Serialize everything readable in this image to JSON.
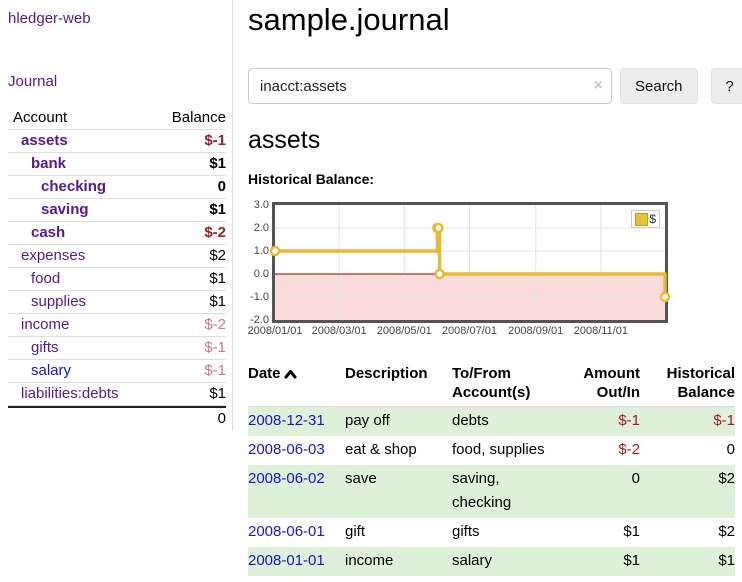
{
  "sidebar": {
    "brand": "hledger-web",
    "journal_link": "Journal",
    "accounts": {
      "header_account": "Account",
      "header_balance": "Balance",
      "rows": [
        {
          "name": "assets",
          "balance": "$-1"
        },
        {
          "name": "bank",
          "balance": "$1"
        },
        {
          "name": "checking",
          "balance": "0"
        },
        {
          "name": "saving",
          "balance": "$1"
        },
        {
          "name": "cash",
          "balance": "$-2"
        },
        {
          "name": "expenses",
          "balance": "$2"
        },
        {
          "name": "food",
          "balance": "$1"
        },
        {
          "name": "supplies",
          "balance": "$1"
        },
        {
          "name": "income",
          "balance": "$-2"
        },
        {
          "name": "gifts",
          "balance": "$-1"
        },
        {
          "name": "salary",
          "balance": "$-1"
        },
        {
          "name": "liabilities:debts",
          "balance": "$1"
        }
      ],
      "total": "0"
    }
  },
  "main": {
    "title": "sample.journal",
    "search": {
      "value": "inacct:assets",
      "clear": "×",
      "button_label": "Search",
      "help_label": "?"
    },
    "heading": "assets",
    "chart_title": "Historical Balance:"
  },
  "chart_data": {
    "type": "line",
    "title": "Historical Balance",
    "step": true,
    "series": [
      {
        "name": "$",
        "color": "#e8ba33",
        "points": [
          {
            "x": "2008-01-01",
            "y": 1
          },
          {
            "x": "2008-06-01",
            "y": 2
          },
          {
            "x": "2008-06-02",
            "y": 2
          },
          {
            "x": "2008-06-03",
            "y": 0
          },
          {
            "x": "2008-12-31",
            "y": -1
          }
        ]
      }
    ],
    "xrange": [
      "2008-01-01",
      "2008-12-31"
    ],
    "ylim": [
      -2,
      3
    ],
    "xticks": [
      "2008/01/01",
      "2008/03/01",
      "2008/05/01",
      "2008/07/01",
      "2008/09/01",
      "2008/11/01"
    ],
    "yticks": [
      "3.0",
      "2.0",
      "1.0",
      "0.0",
      "-1.0",
      "-2.0"
    ],
    "legend_position": "top-right",
    "grid": true,
    "grid_color": "#e3e3e3",
    "zero_line_color": "#8b0000",
    "negative_region_color": "#fbdcdc"
  },
  "register": {
    "headers": {
      "date": "Date",
      "description": "Description",
      "accounts": "To/From Account(s)",
      "amount": "Amount Out/In",
      "balance": "Historical Balance"
    },
    "sort_icon": "chevron-up",
    "rows": [
      {
        "date": "2008-12-31",
        "description": "pay off",
        "accounts": "debts",
        "amount": "$-1",
        "balance": "$-1"
      },
      {
        "date": "2008-06-03",
        "description": "eat & shop",
        "accounts": "food, supplies",
        "amount": "$-2",
        "balance": "0"
      },
      {
        "date": "2008-06-02",
        "description": "save",
        "accounts": "saving, checking",
        "amount": "0",
        "balance": "$2"
      },
      {
        "date": "2008-06-01",
        "description": "gift",
        "accounts": "gifts",
        "amount": "$1",
        "balance": "$2"
      },
      {
        "date": "2008-01-01",
        "description": "income",
        "accounts": "salary",
        "amount": "$1",
        "balance": "$1"
      }
    ]
  }
}
